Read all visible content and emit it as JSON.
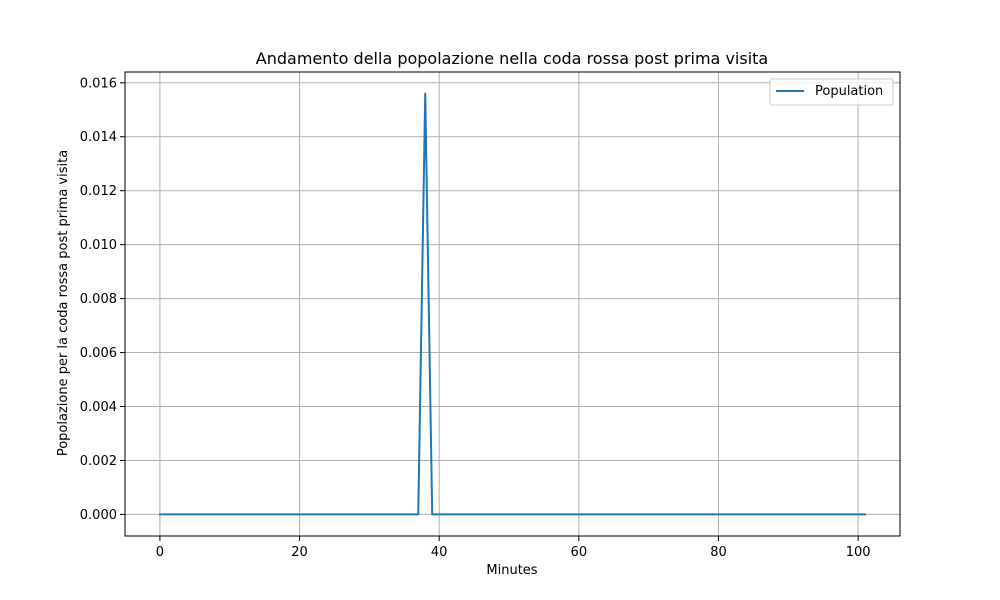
{
  "chart_data": {
    "type": "line",
    "title": "Andamento della popolazione nella coda rossa post prima visita",
    "xlabel": "Minutes",
    "ylabel": "Popolazione per la coda rossa post prima visita",
    "xlim": [
      -5,
      106
    ],
    "ylim": [
      -0.0008,
      0.0164
    ],
    "x_ticks": [
      0,
      20,
      40,
      60,
      80,
      100
    ],
    "x_tick_labels": [
      "0",
      "20",
      "40",
      "60",
      "80",
      "100"
    ],
    "y_ticks": [
      0.0,
      0.002,
      0.004,
      0.006,
      0.008,
      0.01,
      0.012,
      0.014,
      0.016
    ],
    "y_tick_labels": [
      "0.000",
      "0.002",
      "0.004",
      "0.006",
      "0.008",
      "0.010",
      "0.012",
      "0.014",
      "0.016"
    ],
    "grid": true,
    "legend": {
      "placement": "top-right"
    },
    "series": [
      {
        "name": "Population",
        "color": "#1f77b4",
        "x": [
          0,
          37,
          38,
          39,
          101
        ],
        "y": [
          0,
          0,
          0.0156,
          0,
          0
        ]
      }
    ]
  }
}
